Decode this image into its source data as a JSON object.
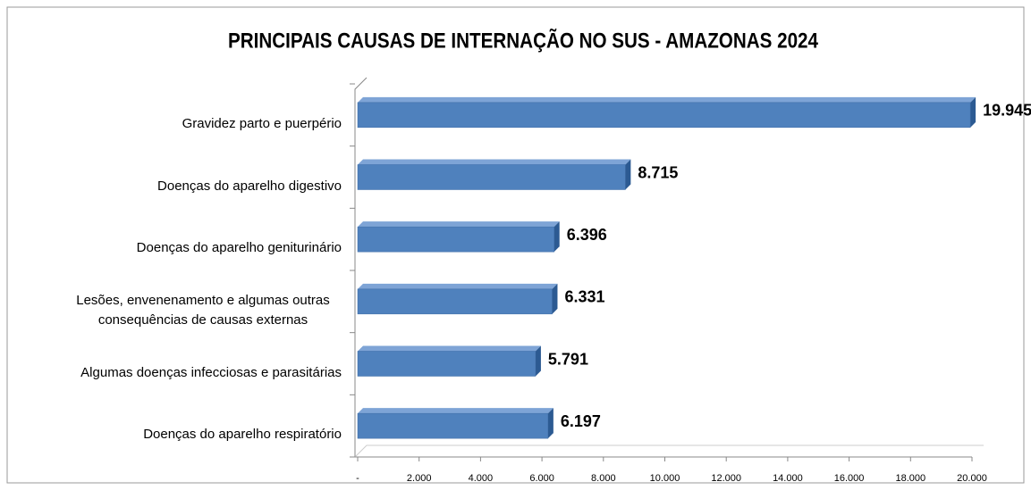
{
  "chart_data": {
    "type": "bar",
    "orientation": "horizontal",
    "title": "PRINCIPAIS CAUSAS DE INTERNAÇÃO NO SUS - AMAZONAS 2024",
    "categories": [
      "Gravidez parto e puerpério",
      "Doenças do aparelho digestivo",
      "Doenças do aparelho geniturinário",
      "Lesões, envenenamento e algumas outras consequências de causas externas",
      "Algumas doenças infecciosas e parasitárias",
      "Doenças do aparelho respiratório"
    ],
    "values": [
      19945,
      8715,
      6396,
      6331,
      5791,
      6197
    ],
    "value_labels": [
      "19.945",
      "8.715",
      "6.396",
      "6.331",
      "5.791",
      "6.197"
    ],
    "color": "#4f81bd",
    "xlim": [
      0,
      20000
    ],
    "xticks": [
      {
        "value": 0,
        "label": "-"
      },
      {
        "value": 2000,
        "label": "2.000"
      },
      {
        "value": 4000,
        "label": "4.000"
      },
      {
        "value": 6000,
        "label": "6.000"
      },
      {
        "value": 8000,
        "label": "8.000"
      },
      {
        "value": 10000,
        "label": "10.000"
      },
      {
        "value": 12000,
        "label": "12.000"
      },
      {
        "value": 14000,
        "label": "14.000"
      },
      {
        "value": 16000,
        "label": "16.000"
      },
      {
        "value": 18000,
        "label": "18.000"
      },
      {
        "value": 20000,
        "label": "20.000"
      }
    ]
  }
}
